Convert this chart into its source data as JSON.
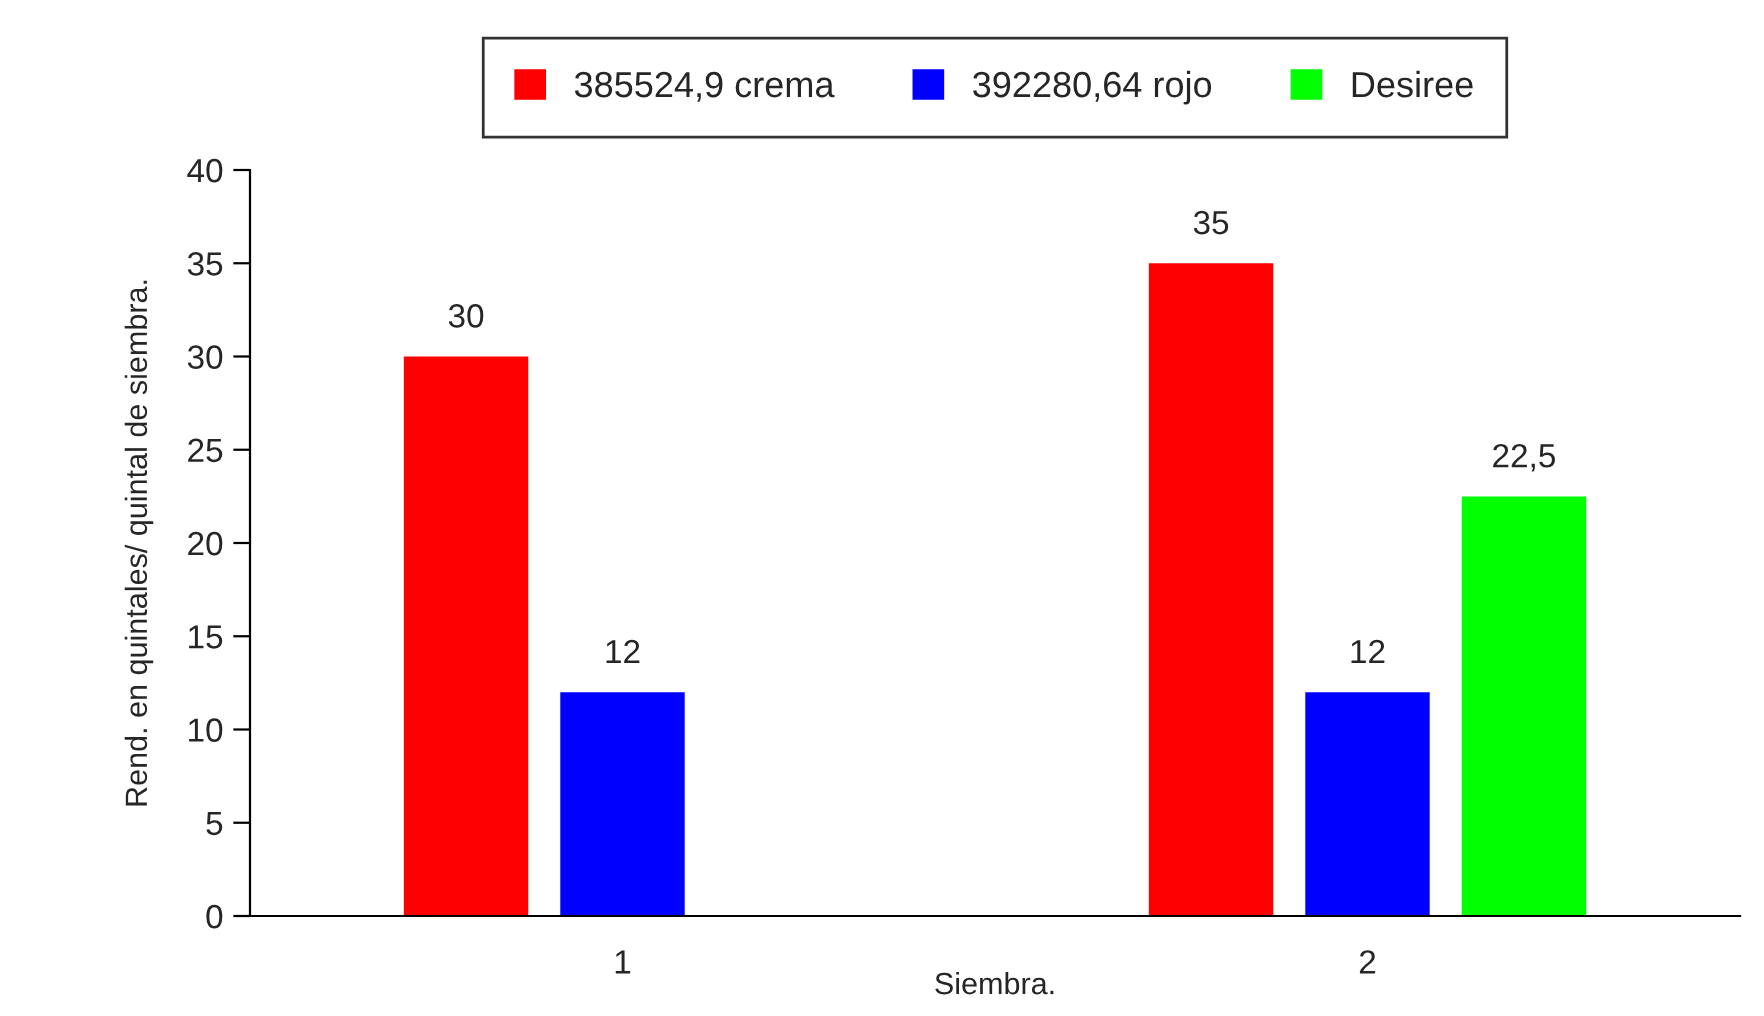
{
  "chart_data": {
    "type": "bar",
    "xlabel": "Siembra.",
    "ylabel": "Rend. en quintales/ quintal de siembra.",
    "categories": [
      "1",
      "2"
    ],
    "series": [
      {
        "name": "385524,9 crema",
        "color": "#ff0000",
        "values": [
          30,
          35
        ],
        "value_labels": [
          "30",
          "35"
        ]
      },
      {
        "name": "392280,64 rojo",
        "color": "#0000ff",
        "values": [
          12,
          12
        ],
        "value_labels": [
          "12",
          "12"
        ]
      },
      {
        "name": "Desiree",
        "color": "#00ff00",
        "values": [
          null,
          22.5
        ],
        "value_labels": [
          null,
          "22,5"
        ]
      }
    ],
    "ylim": [
      0,
      40
    ],
    "yticks": [
      0,
      5,
      10,
      15,
      20,
      25,
      30,
      35,
      40
    ],
    "grid": false,
    "legend": "top"
  }
}
